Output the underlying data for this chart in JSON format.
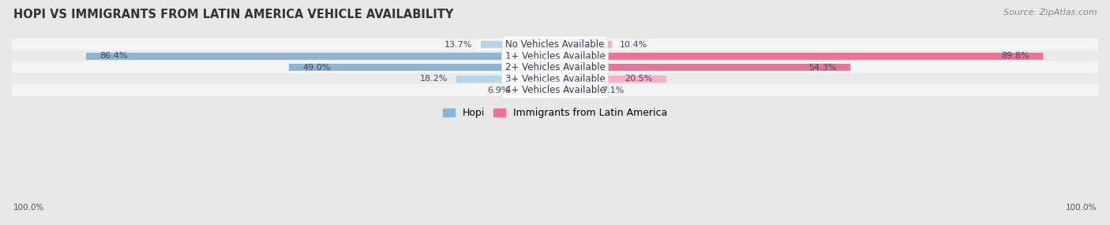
{
  "title": "HOPI VS IMMIGRANTS FROM LATIN AMERICA VEHICLE AVAILABILITY",
  "source": "Source: ZipAtlas.com",
  "categories": [
    "No Vehicles Available",
    "1+ Vehicles Available",
    "2+ Vehicles Available",
    "3+ Vehicles Available",
    "4+ Vehicles Available"
  ],
  "hopi_values": [
    13.7,
    86.4,
    49.0,
    18.2,
    6.9
  ],
  "immigrant_values": [
    10.4,
    89.8,
    54.3,
    20.5,
    7.1
  ],
  "hopi_color": "#8ab4d8",
  "immigrant_color": "#f07098",
  "hopi_color_light": "#b8d4ea",
  "immigrant_color_light": "#f8b0c8",
  "hopi_label": "Hopi",
  "immigrant_label": "Immigrants from Latin America",
  "max_value": 100.0,
  "background_color": "#e8e8e8",
  "row_colors": [
    "#f5f5f5",
    "#ebebeb"
  ],
  "bar_height": 0.62,
  "title_fontsize": 10.5,
  "label_fontsize": 8.5,
  "value_fontsize": 8.0,
  "tick_fontsize": 7.5,
  "source_fontsize": 8
}
